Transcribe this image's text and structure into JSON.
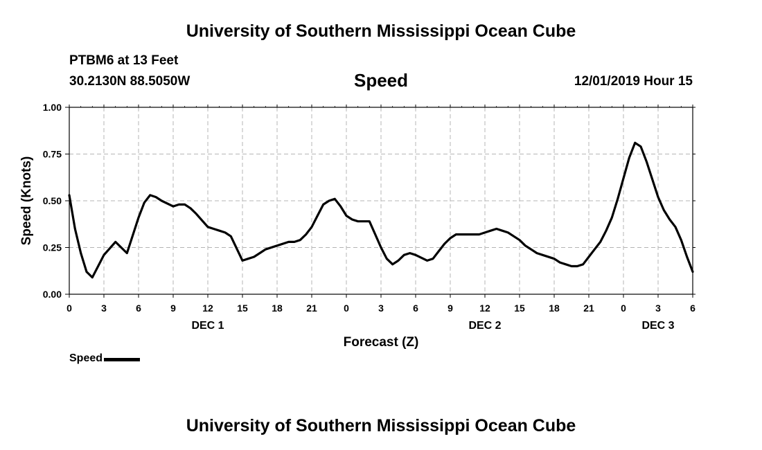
{
  "header": {
    "title": "University of Southern Mississippi Ocean Cube",
    "station": "PTBM6 at 13 Feet",
    "coordinates": "30.2130N 88.5050W",
    "timestamp": "12/01/2019 Hour 15"
  },
  "footer": {
    "title": "University of Southern Mississippi Ocean Cube"
  },
  "chart_data": {
    "type": "line",
    "title": "Speed",
    "xlabel": "Forecast (Z)",
    "ylabel": "Speed (Knots)",
    "xlim": [
      0,
      54
    ],
    "ylim": [
      0,
      1
    ],
    "x_ticks": [
      0,
      3,
      6,
      9,
      12,
      15,
      18,
      21,
      24,
      27,
      30,
      33,
      36,
      39,
      42,
      45,
      48,
      51,
      54
    ],
    "x_tick_labels": [
      "0",
      "3",
      "6",
      "9",
      "12",
      "15",
      "18",
      "21",
      "0",
      "3",
      "6",
      "9",
      "12",
      "15",
      "18",
      "21",
      "0",
      "3",
      "6"
    ],
    "day_labels": [
      {
        "x": 12,
        "label": "DEC 1"
      },
      {
        "x": 36,
        "label": "DEC 2"
      },
      {
        "x": 51,
        "label": "DEC 3"
      }
    ],
    "y_ticks": [
      0,
      0.25,
      0.5,
      0.75,
      1
    ],
    "y_tick_labels": [
      "0.00",
      "0.25",
      "0.50",
      "0.75",
      "1.00"
    ],
    "grid": true,
    "legend": {
      "position": "bottom-left",
      "entries": [
        "Speed"
      ]
    },
    "series": [
      {
        "name": "Speed",
        "color": "#000000",
        "x": [
          0,
          0.5,
          1,
          1.5,
          2,
          3,
          4,
          4.5,
          5,
          6,
          6.5,
          7,
          7.5,
          8,
          9,
          9.5,
          10,
          10.5,
          11,
          12,
          12.5,
          13,
          13.5,
          14,
          15,
          15.5,
          16,
          16.5,
          17,
          18,
          19,
          19.5,
          20,
          20.5,
          21,
          21.5,
          22,
          22.5,
          23,
          23.5,
          24,
          24.5,
          25,
          26,
          26.5,
          27,
          27.5,
          28,
          28.5,
          29,
          29.5,
          30,
          31,
          31.5,
          32,
          32.5,
          33,
          33.5,
          34,
          35,
          35.5,
          36,
          36.5,
          37,
          37.5,
          38,
          38.5,
          39,
          39.5,
          40,
          40.5,
          41,
          42,
          42.5,
          43,
          43.5,
          44,
          44.5,
          45,
          45.5,
          46,
          46.5,
          47,
          47.5,
          48,
          48.5,
          49,
          49.5,
          50,
          51,
          51.5,
          52,
          52.5,
          53,
          53.5,
          54
        ],
        "y": [
          0.53,
          0.35,
          0.22,
          0.12,
          0.09,
          0.21,
          0.28,
          0.25,
          0.22,
          0.41,
          0.49,
          0.53,
          0.52,
          0.5,
          0.47,
          0.48,
          0.48,
          0.46,
          0.43,
          0.36,
          0.35,
          0.34,
          0.33,
          0.31,
          0.18,
          0.19,
          0.2,
          0.22,
          0.24,
          0.26,
          0.28,
          0.28,
          0.29,
          0.32,
          0.36,
          0.42,
          0.48,
          0.5,
          0.51,
          0.47,
          0.42,
          0.4,
          0.39,
          0.39,
          0.32,
          0.25,
          0.19,
          0.16,
          0.18,
          0.21,
          0.22,
          0.21,
          0.18,
          0.19,
          0.23,
          0.27,
          0.3,
          0.32,
          0.32,
          0.32,
          0.32,
          0.33,
          0.34,
          0.35,
          0.34,
          0.33,
          0.31,
          0.29,
          0.26,
          0.24,
          0.22,
          0.21,
          0.19,
          0.17,
          0.16,
          0.15,
          0.15,
          0.16,
          0.2,
          0.24,
          0.28,
          0.34,
          0.41,
          0.51,
          0.62,
          0.73,
          0.81,
          0.79,
          0.71,
          0.52,
          0.45,
          0.4,
          0.36,
          0.29,
          0.2,
          0.12
        ]
      }
    ]
  }
}
